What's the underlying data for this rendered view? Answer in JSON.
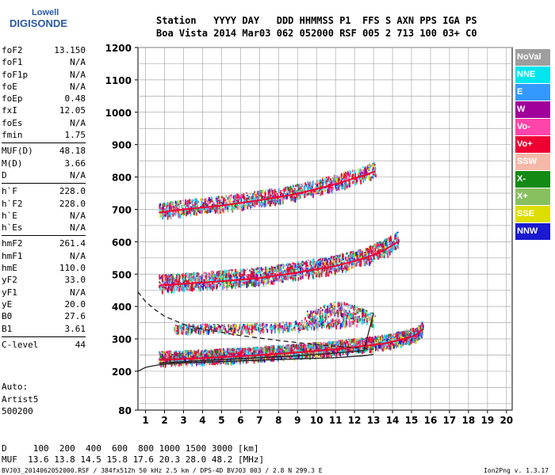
{
  "logo": {
    "line1": "Lowell",
    "line2": "DIGISONDE"
  },
  "header": {
    "row1": "Station   YYYY DAY   DDD HHMMSS P1  FFS S AXN PPS IGA PS",
    "row2": "Boa Vista 2014 Mar03 062 052000 RSF 005 2 713 100 03+ C0"
  },
  "params_groups": [
    [
      {
        "name": "foF2",
        "value": "13.150"
      },
      {
        "name": "foF1",
        "value": "N/A"
      },
      {
        "name": "foF1p",
        "value": "N/A"
      },
      {
        "name": "foE",
        "value": "N/A"
      },
      {
        "name": "foEp",
        "value": "0.48"
      },
      {
        "name": "fxI",
        "value": "12.05"
      },
      {
        "name": "foEs",
        "value": "N/A"
      },
      {
        "name": "fmin",
        "value": "1.75"
      }
    ],
    [
      {
        "name": "MUF(D)",
        "value": "48.18"
      },
      {
        "name": "M(D)",
        "value": "3.66"
      },
      {
        "name": "D",
        "value": "N/A"
      }
    ],
    [
      {
        "name": "h`F",
        "value": "228.0"
      },
      {
        "name": "h`F2",
        "value": "228.0"
      },
      {
        "name": "h`E",
        "value": "N/A"
      },
      {
        "name": "h`Es",
        "value": "N/A"
      }
    ],
    [
      {
        "name": "hmF2",
        "value": "261.4"
      },
      {
        "name": "hmF1",
        "value": "N/A"
      },
      {
        "name": "hmE",
        "value": "110.0"
      },
      {
        "name": "yF2",
        "value": "33.0"
      },
      {
        "name": "yF1",
        "value": "N/A"
      },
      {
        "name": "yE",
        "value": "20.0"
      },
      {
        "name": "B0",
        "value": "27.6"
      },
      {
        "name": "B1",
        "value": "3.61"
      }
    ],
    [
      {
        "name": "C-level",
        "value": "44"
      }
    ]
  ],
  "auto": {
    "line1": "Auto:",
    "line2": "Artist5",
    "line3": "500200"
  },
  "bottom": {
    "d_row": "D     100  200  400  600  800 1000 1500 3000 [km]",
    "muf_row": "MUF  13.6 13.8 14.5 15.8 17.6 20.3 28.0 48.2 [MHz]"
  },
  "footer": {
    "left": "BVJ03_2014062052000.RSF / 384fx512h 50 kHz 2.5 km / DPS-4D BVJ03 003 / 2.8 N 299.3 E",
    "right": "Ion2Png v. 1.3.17"
  },
  "legend": [
    {
      "label": "NoVal",
      "color": "#9e9e9e"
    },
    {
      "label": "NNE",
      "color": "#00e5ee"
    },
    {
      "label": "E",
      "color": "#3399ff"
    },
    {
      "label": "W",
      "color": "#a0009a"
    },
    {
      "label": "Vo-",
      "color": "#ff44aa"
    },
    {
      "label": "Vo+",
      "color": "#ee0033"
    },
    {
      "label": "SSW",
      "color": "#f4b8a8"
    },
    {
      "label": "X-",
      "color": "#138a13"
    },
    {
      "label": "X+",
      "color": "#88c060"
    },
    {
      "label": "SSE",
      "color": "#dddd00"
    },
    {
      "label": "NNW",
      "color": "#1a1ad0"
    }
  ],
  "chart_data": {
    "type": "scatter",
    "x_ticks": [
      1,
      2,
      3,
      4,
      5,
      6,
      7,
      8,
      9,
      10,
      11,
      12,
      13,
      14,
      15,
      16,
      17,
      18,
      19,
      20
    ],
    "y_ticks": [
      80,
      200,
      300,
      400,
      500,
      600,
      700,
      800,
      900,
      1000,
      1100,
      1200
    ],
    "xlim": [
      0.6,
      20.3
    ],
    "ylim": [
      80,
      1200
    ],
    "grid": true,
    "legend_position": "right",
    "traces": [
      {
        "name": "F2 o-trace",
        "x": [
          1.7,
          3,
          5,
          7,
          9,
          11,
          12.5,
          13.5,
          14.5,
          15.2,
          15.6
        ],
        "y": [
          235,
          238,
          243,
          250,
          258,
          268,
          278,
          285,
          298,
          310,
          330
        ]
      },
      {
        "name": "F2 2nd hop",
        "x": [
          1.7,
          3,
          5,
          7,
          9,
          11,
          12.5,
          13.5,
          14.3
        ],
        "y": [
          465,
          470,
          478,
          488,
          505,
          525,
          548,
          572,
          600
        ]
      },
      {
        "name": "F2 3rd hop",
        "x": [
          1.7,
          3,
          5,
          7,
          9,
          11,
          12.5,
          13.1
        ],
        "y": [
          690,
          700,
          712,
          728,
          748,
          778,
          805,
          818
        ]
      },
      {
        "name": "scattered spread",
        "x": [
          9.5,
          10,
          10.5,
          11,
          11.5,
          12,
          12.5,
          13
        ],
        "y": [
          360,
          370,
          380,
          390,
          385,
          375,
          365,
          355
        ]
      },
      {
        "name": "x-trace",
        "x": [
          2.5,
          4,
          6,
          8,
          10,
          12
        ],
        "y": [
          330,
          330,
          330,
          335,
          345,
          350
        ]
      }
    ],
    "model_curves": [
      {
        "name": "profile solid lower",
        "x": [
          0.6,
          1,
          1.5,
          2,
          3,
          5,
          7,
          9,
          11,
          12.5,
          13
        ],
        "y": [
          200,
          212,
          218,
          222,
          226,
          230,
          234,
          238,
          242,
          248,
          252
        ]
      },
      {
        "name": "profile solid upper",
        "x": [
          1.7,
          3,
          5,
          7,
          9,
          11,
          12.5,
          13
        ],
        "y": [
          225,
          230,
          236,
          242,
          248,
          256,
          264,
          380
        ]
      },
      {
        "name": "profile dashed",
        "x": [
          0.6,
          1,
          1.5,
          2,
          3,
          4,
          6,
          8,
          10,
          11.5,
          13
        ],
        "y": [
          445,
          415,
          390,
          370,
          345,
          330,
          310,
          295,
          282,
          275,
          268
        ]
      }
    ]
  }
}
